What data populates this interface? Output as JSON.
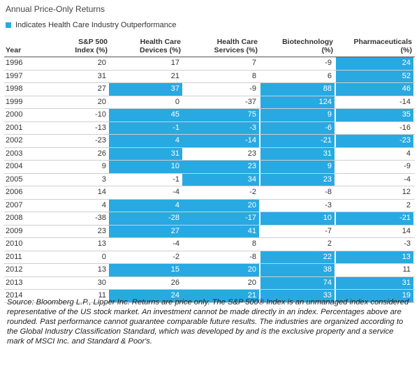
{
  "title": "Annual Price-Only Returns",
  "legend": {
    "label": "Indicates Health Care Industry Outperformance",
    "color": "#29a9e1"
  },
  "columns": [
    {
      "key": "year",
      "label": "Year"
    },
    {
      "key": "sp500",
      "label": "S&P 500 Index (%)"
    },
    {
      "key": "devices",
      "label": "Health Care Devices (%)"
    },
    {
      "key": "services",
      "label": "Health Care Services (%)"
    },
    {
      "key": "biotech",
      "label": "Biotechnology (%)"
    },
    {
      "key": "pharma",
      "label": "Pharmaceuticals (%)"
    }
  ],
  "header_lines": {
    "year": [
      "Year"
    ],
    "sp500": [
      "S&P 500",
      "Index (%)"
    ],
    "devices": [
      "Health Care",
      "Devices (%)"
    ],
    "services": [
      "Health Care",
      "Services (%)"
    ],
    "biotech": [
      "Biotechnology",
      "(%)"
    ],
    "pharma": [
      "Pharmaceuticals",
      "(%)"
    ]
  },
  "rows": [
    {
      "year": "1996",
      "sp500": "20",
      "devices": "17",
      "services": "7",
      "biotech": "-9",
      "pharma": "24",
      "hl": [
        "pharma"
      ]
    },
    {
      "year": "1997",
      "sp500": "31",
      "devices": "21",
      "services": "8",
      "biotech": "6",
      "pharma": "52",
      "hl": [
        "pharma"
      ]
    },
    {
      "year": "1998",
      "sp500": "27",
      "devices": "37",
      "services": "-9",
      "biotech": "88",
      "pharma": "46",
      "hl": [
        "devices",
        "biotech",
        "pharma"
      ]
    },
    {
      "year": "1999",
      "sp500": "20",
      "devices": "0",
      "services": "-37",
      "biotech": "124",
      "pharma": "-14",
      "hl": [
        "biotech"
      ]
    },
    {
      "year": "2000",
      "sp500": "-10",
      "devices": "45",
      "services": "75",
      "biotech": "9",
      "pharma": "35",
      "hl": [
        "devices",
        "services",
        "biotech",
        "pharma"
      ]
    },
    {
      "year": "2001",
      "sp500": "-13",
      "devices": "-1",
      "services": "-3",
      "biotech": "-6",
      "pharma": "-16",
      "hl": [
        "devices",
        "services",
        "biotech"
      ]
    },
    {
      "year": "2002",
      "sp500": "-23",
      "devices": "4",
      "services": "-14",
      "biotech": "-21",
      "pharma": "-23",
      "hl": [
        "devices",
        "services",
        "biotech",
        "pharma"
      ]
    },
    {
      "year": "2003",
      "sp500": "26",
      "devices": "31",
      "services": "23",
      "biotech": "31",
      "pharma": "4",
      "hl": [
        "devices",
        "biotech"
      ]
    },
    {
      "year": "2004",
      "sp500": "9",
      "devices": "10",
      "services": "23",
      "biotech": "9",
      "pharma": "-9",
      "hl": [
        "devices",
        "services",
        "biotech"
      ]
    },
    {
      "year": "2005",
      "sp500": "3",
      "devices": "-1",
      "services": "34",
      "biotech": "23",
      "pharma": "-4",
      "hl": [
        "services",
        "biotech"
      ]
    },
    {
      "year": "2006",
      "sp500": "14",
      "devices": "-4",
      "services": "-2",
      "biotech": "-8",
      "pharma": "12",
      "hl": []
    },
    {
      "year": "2007",
      "sp500": "4",
      "devices": "4",
      "services": "20",
      "biotech": "-3",
      "pharma": "2",
      "hl": [
        "devices",
        "services"
      ]
    },
    {
      "year": "2008",
      "sp500": "-38",
      "devices": "-28",
      "services": "-17",
      "biotech": "10",
      "pharma": "-21",
      "hl": [
        "devices",
        "services",
        "biotech",
        "pharma"
      ]
    },
    {
      "year": "2009",
      "sp500": "23",
      "devices": "27",
      "services": "41",
      "biotech": "-7",
      "pharma": "14",
      "hl": [
        "devices",
        "services"
      ]
    },
    {
      "year": "2010",
      "sp500": "13",
      "devices": "-4",
      "services": "8",
      "biotech": "2",
      "pharma": "-3",
      "hl": []
    },
    {
      "year": "2011",
      "sp500": "0",
      "devices": "-2",
      "services": "-8",
      "biotech": "22",
      "pharma": "13",
      "hl": [
        "biotech",
        "pharma"
      ]
    },
    {
      "year": "2012",
      "sp500": "13",
      "devices": "15",
      "services": "20",
      "biotech": "38",
      "pharma": "11",
      "hl": [
        "devices",
        "services",
        "biotech"
      ]
    },
    {
      "year": "2013",
      "sp500": "30",
      "devices": "26",
      "services": "20",
      "biotech": "74",
      "pharma": "31",
      "hl": [
        "biotech",
        "pharma"
      ]
    },
    {
      "year": "2014",
      "sp500": "11",
      "devices": "24",
      "services": "21",
      "biotech": "33",
      "pharma": "19",
      "hl": [
        "devices",
        "services",
        "biotech",
        "pharma"
      ]
    }
  ],
  "source": "Source: Bloomberg L.P., Lipper Inc. Returns are price only. The S&P 500® Index is an unmanaged index considered representative of the US stock market. An investment cannot be made directly in an index. Percentages above are rounded. Past performance cannot guarantee comparable future results. The industries are organized according to the Global Industry Classification Standard, which was developed by and is the exclusive property and a service mark of MSCI Inc. and Standard & Poor's."
}
